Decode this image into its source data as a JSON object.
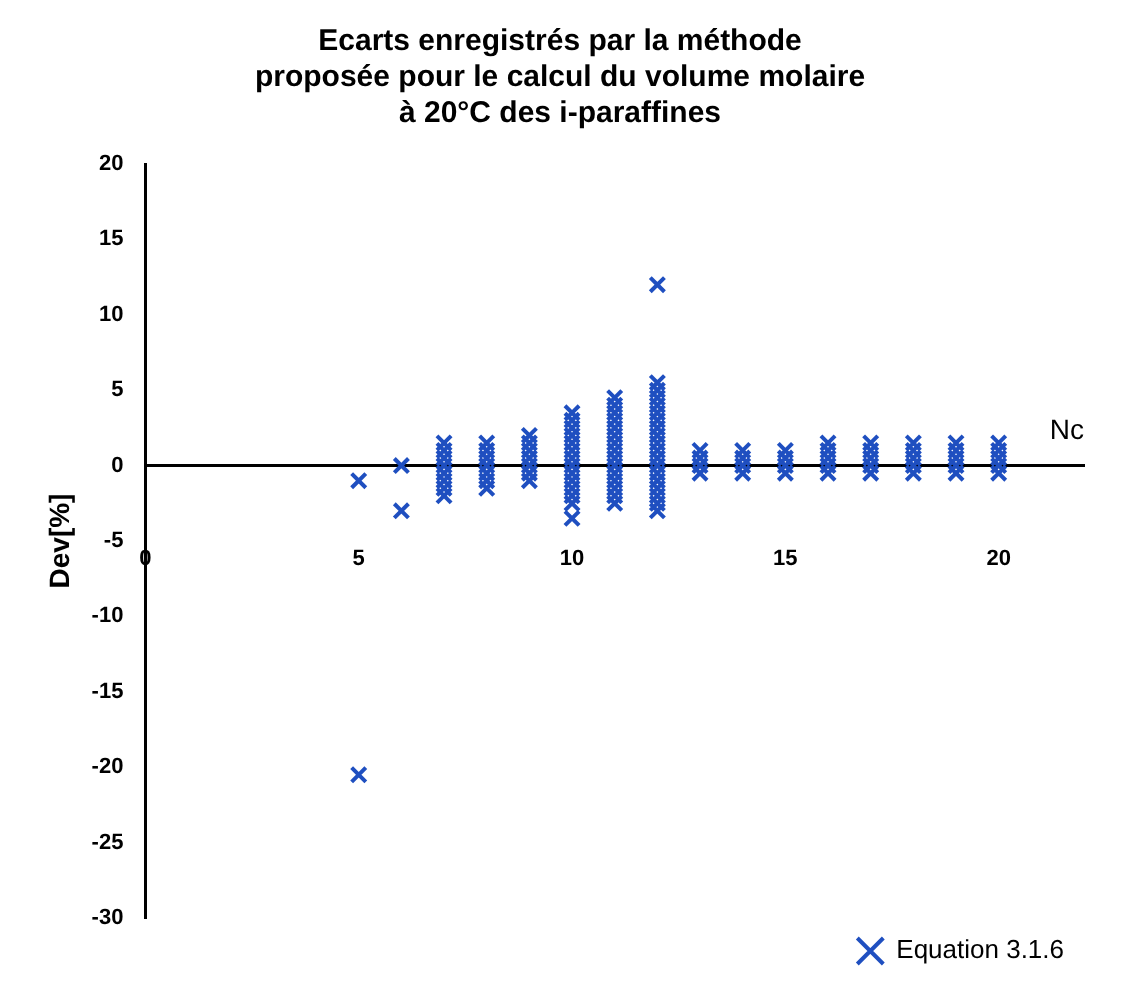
{
  "chart_data": {
    "type": "scatter",
    "title": "Ecarts enregistrés par la méthode\nproposée pour le calcul du volume molaire\nà 20°C des i-paraffines",
    "xlabel": "Nc",
    "ylabel": "Dev[%]",
    "marker": "cross",
    "legend": "bottom right",
    "xlim": [
      0,
      22
    ],
    "xticks": [
      0,
      5,
      10,
      15,
      20
    ],
    "ylim": [
      -30,
      20
    ],
    "yticks": [
      -30,
      -25,
      -20,
      -15,
      -10,
      -5,
      0,
      5,
      10,
      15,
      20
    ],
    "series": [
      {
        "name": "Equation 3.1.6",
        "color": "#1f4fc0",
        "x": [
          5,
          5,
          6,
          6,
          7,
          7,
          7,
          7,
          7,
          7,
          7,
          7,
          8,
          8,
          8,
          8,
          8,
          8,
          8,
          9,
          9,
          9,
          9,
          9,
          9,
          9,
          10,
          10,
          10,
          10,
          10,
          10,
          10,
          10,
          10,
          10,
          10,
          10,
          10,
          10,
          11,
          11,
          11,
          11,
          11,
          11,
          11,
          11,
          11,
          11,
          11,
          11,
          11,
          11,
          11,
          12,
          12,
          12,
          12,
          12,
          12,
          12,
          12,
          12,
          12,
          12,
          12,
          12,
          12,
          12,
          12,
          12,
          12,
          12,
          13,
          13,
          13,
          13,
          14,
          14,
          14,
          14,
          15,
          15,
          15,
          15,
          16,
          16,
          16,
          16,
          16,
          17,
          17,
          17,
          17,
          17,
          18,
          18,
          18,
          18,
          18,
          19,
          19,
          19,
          19,
          19,
          20,
          20,
          20,
          20,
          20
        ],
        "values": [
          -1,
          -20.5,
          0,
          -3,
          -2,
          -1.5,
          -1,
          -0.5,
          0,
          0.5,
          1,
          1.5,
          -1.5,
          -1,
          -0.5,
          0,
          0.5,
          1,
          1.5,
          -1,
          -0.5,
          0,
          0.5,
          1,
          1.5,
          2,
          -3.5,
          -2.5,
          -2,
          -1.5,
          -1,
          -0.5,
          0,
          0.5,
          1,
          1.5,
          2,
          2.5,
          3,
          3.5,
          -2.5,
          -2,
          -1.5,
          -1,
          -0.5,
          0,
          0.5,
          1,
          1.5,
          2,
          2.5,
          3,
          3.5,
          4,
          4.5,
          -3,
          -2.5,
          -2,
          -1.5,
          -1,
          -0.5,
          0,
          0.5,
          1,
          1.5,
          2,
          2.5,
          3,
          3.5,
          4,
          4.5,
          5,
          5.5,
          12,
          -0.5,
          0,
          0.5,
          1,
          -0.5,
          0,
          0.5,
          1,
          -0.5,
          0,
          0.5,
          1,
          -0.5,
          0,
          0.5,
          1,
          1.5,
          -0.5,
          0,
          0.5,
          1,
          1.5,
          -0.5,
          0,
          0.5,
          1,
          1.5,
          -0.5,
          0,
          0.5,
          1,
          1.5,
          -0.5,
          0,
          0.5,
          1,
          1.5
        ]
      }
    ]
  }
}
